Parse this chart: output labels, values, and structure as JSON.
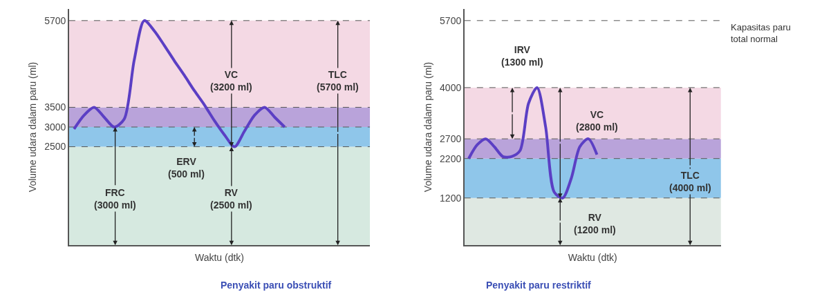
{
  "chart_data": [
    {
      "type": "line",
      "title": "Penyakit paru obstruktif",
      "xlabel": "Waktu (dtk)",
      "ylabel": "Volume udara dalam paru (ml)",
      "categories": [
        null,
        null,
        null,
        null,
        null,
        null,
        null,
        null,
        null,
        null,
        null,
        null,
        null,
        null,
        null,
        null,
        null,
        null,
        null,
        null,
        null,
        null,
        null,
        null,
        null,
        null,
        null,
        null,
        null,
        null
      ],
      "series": [
        {
          "color": "#5b3fc4",
          "values": [
            2950,
            3300,
            3500,
            3250,
            3000,
            3200,
            4700,
            5700,
            5440,
            5070,
            4680,
            4310,
            3920,
            3560,
            3160,
            2800,
            2500,
            2900,
            3300,
            3500,
            3250,
            3000,
            null,
            null,
            null,
            null,
            null,
            null,
            null,
            null
          ]
        }
      ],
      "ylim": [
        0,
        6000
      ],
      "yticks": [
        2500,
        3000,
        3500,
        5700
      ],
      "bands": [
        {
          "axis": "y",
          "from": 0,
          "to": 2500,
          "color": "#d6e9e0"
        },
        {
          "axis": "y",
          "from": 2500,
          "to": 3000,
          "color": "#8fc6ea"
        },
        {
          "axis": "y",
          "from": 3000,
          "to": 3500,
          "color": "#b9a3da"
        },
        {
          "axis": "y",
          "from": 3500,
          "to": 5700,
          "color": "#f4d9e4"
        }
      ],
      "ref_lines": [
        {
          "axis": "y",
          "value": 5700,
          "line_style": "dashed",
          "color": "#555555"
        },
        {
          "axis": "y",
          "value": 3500,
          "line_style": "dashed",
          "color": "#555555"
        },
        {
          "axis": "y",
          "value": 3000,
          "line_style": "dashed",
          "color": "#555555"
        },
        {
          "axis": "y",
          "value": 2500,
          "line_style": "dashed",
          "color": "#555555"
        }
      ],
      "annotations": [
        "VC\n(3200 ml)",
        "TLC\n(5700 ml)",
        "ERV\n(500 ml)",
        "FRC\n(3000 ml)",
        "RV\n(2500 ml)"
      ],
      "marker": "none",
      "line_style": "solid",
      "tick_labels": "y"
    },
    {
      "type": "line",
      "title": "Penyakit paru restriktif",
      "xlabel": "Waktu (dtk)",
      "ylabel": "Volume udara dalam paru (ml)",
      "categories": [
        null,
        null,
        null,
        null,
        null,
        null,
        null,
        null,
        null,
        null,
        null,
        null,
        null,
        null,
        null,
        null,
        null,
        null,
        null,
        null,
        null,
        null,
        null,
        null,
        null,
        null,
        null,
        null,
        null,
        null
      ],
      "series": [
        {
          "color": "#5b3fc4",
          "values": [
            2200,
            2550,
            2700,
            2500,
            2250,
            2250,
            2400,
            3600,
            4000,
            3000,
            1350,
            1200,
            1700,
            2500,
            2700,
            2300,
            null,
            null,
            null,
            null,
            null,
            null,
            null,
            null,
            null,
            null,
            null,
            null,
            null,
            null
          ]
        }
      ],
      "ylim": [
        0,
        6000
      ],
      "yticks": [
        1200,
        2200,
        2700,
        4000,
        5700
      ],
      "bands": [
        {
          "axis": "y",
          "from": 0,
          "to": 1200,
          "color": "#dfe8e2"
        },
        {
          "axis": "y",
          "from": 1200,
          "to": 2200,
          "color": "#8fc6ea"
        },
        {
          "axis": "y",
          "from": 2200,
          "to": 2700,
          "color": "#b9a3da"
        },
        {
          "axis": "y",
          "from": 2700,
          "to": 4000,
          "color": "#f4d9e4"
        }
      ],
      "ref_lines": [
        {
          "axis": "y",
          "value": 5700,
          "label": "Kapasitas paru\ntotal normal",
          "line_style": "dashed",
          "color": "#555555"
        },
        {
          "axis": "y",
          "value": 4000,
          "line_style": "dashed",
          "color": "#555555"
        },
        {
          "axis": "y",
          "value": 2700,
          "line_style": "dashed",
          "color": "#555555"
        },
        {
          "axis": "y",
          "value": 2200,
          "line_style": "dashed",
          "color": "#555555"
        },
        {
          "axis": "y",
          "value": 1200,
          "line_style": "dashed",
          "color": "#555555"
        }
      ],
      "annotations": [
        "IRV\n(1300 ml)",
        "VC\n(2800 ml)",
        "TLC\n(4000 ml)",
        "RV\n(1200 ml)"
      ],
      "marker": "none",
      "line_style": "solid",
      "tick_labels": "y"
    }
  ]
}
